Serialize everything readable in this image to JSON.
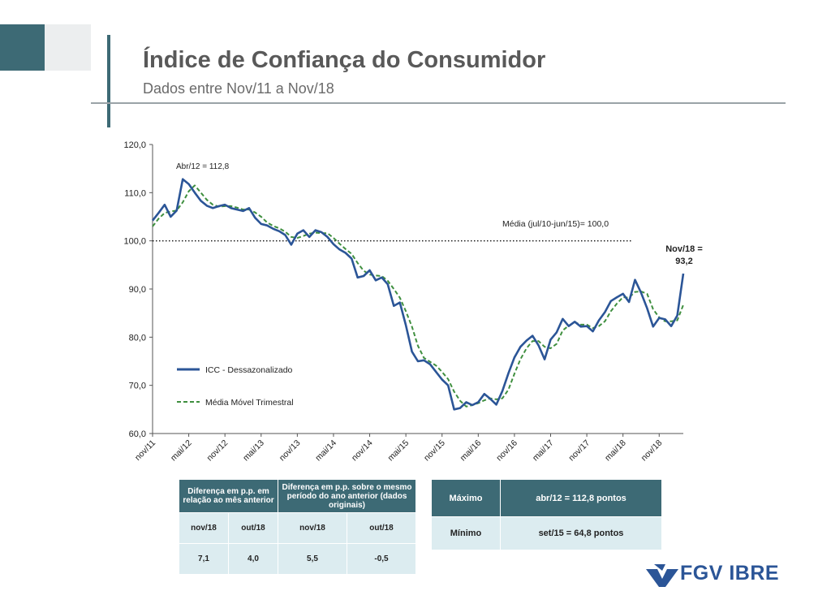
{
  "header": {
    "title": "Índice de Confiança do Consumidor",
    "subtitle": "Dados entre Nov/11 a Nov/18"
  },
  "chart_data": {
    "type": "line",
    "title": "",
    "xlabel": "",
    "ylabel": "",
    "ylim": [
      60,
      120
    ],
    "yticks": [
      "120,0",
      "110,0",
      "100,0",
      "90,0",
      "80,0",
      "70,0",
      "60,0"
    ],
    "ytick_values": [
      120,
      110,
      100,
      90,
      80,
      70,
      60
    ],
    "xticks": [
      "nov/11",
      "mai/12",
      "nov/12",
      "mai/13",
      "nov/13",
      "mai/14",
      "nov/14",
      "mai/15",
      "nov/15",
      "mai/16",
      "nov/16",
      "mai/17",
      "nov/17",
      "mai/18",
      "nov/18"
    ],
    "reference_line": {
      "value": 100,
      "label": "Média (jul/10-jun/15)= 100,0"
    },
    "annotations": [
      {
        "text": "Abr/12 = 112,8"
      },
      {
        "text": "Nov/18 ="
      },
      {
        "text": "93,2"
      }
    ],
    "series": [
      {
        "name": "ICC - Dessazonalizado",
        "color": "#2b5597",
        "style": "solid",
        "values": [
          104.2,
          105.8,
          107.5,
          105.0,
          106.3,
          112.8,
          111.8,
          110.0,
          108.3,
          107.3,
          106.8,
          107.2,
          107.5,
          106.8,
          106.5,
          106.2,
          106.8,
          104.8,
          103.5,
          103.2,
          102.5,
          102.0,
          101.2,
          99.2,
          101.5,
          102.2,
          100.8,
          102.2,
          101.8,
          100.8,
          99.3,
          98.2,
          97.5,
          96.3,
          92.4,
          92.7,
          93.9,
          91.8,
          92.4,
          91.0,
          86.5,
          87.2,
          82.5,
          77.0,
          75.0,
          75.2,
          74.4,
          72.8,
          71.2,
          70.0,
          65.0,
          65.3,
          66.5,
          65.9,
          66.5,
          68.2,
          67.2,
          66.0,
          68.8,
          72.5,
          75.8,
          78.0,
          79.3,
          80.3,
          78.3,
          75.4,
          79.5,
          81.0,
          83.8,
          82.3,
          83.2,
          82.2,
          82.3,
          81.2,
          83.5,
          85.2,
          87.5,
          88.3,
          89.0,
          87.3,
          91.9,
          89.2,
          86.0,
          82.2,
          84.0,
          83.7,
          82.3,
          84.5,
          93.2
        ]
      },
      {
        "name": "Média Móvel Trimestral",
        "color": "#3f8f3f",
        "style": "dashed",
        "values": [
          103.0,
          104.6,
          105.8,
          106.1,
          106.3,
          108.0,
          110.3,
          111.5,
          110.0,
          108.5,
          107.5,
          107.1,
          107.2,
          107.2,
          106.9,
          106.5,
          106.5,
          105.9,
          105.0,
          103.8,
          103.1,
          102.6,
          101.9,
          100.8,
          100.6,
          101.0,
          101.5,
          101.7,
          101.6,
          101.6,
          100.6,
          99.4,
          98.3,
          97.3,
          95.4,
          93.8,
          93.0,
          92.8,
          92.7,
          91.7,
          90.0,
          88.2,
          85.4,
          82.2,
          78.2,
          75.7,
          74.9,
          74.1,
          72.8,
          71.3,
          68.7,
          66.8,
          65.6,
          65.9,
          66.3,
          66.9,
          67.3,
          67.1,
          67.3,
          69.1,
          72.4,
          75.4,
          77.7,
          79.2,
          79.2,
          78.0,
          77.7,
          78.6,
          81.4,
          82.4,
          83.1,
          82.6,
          82.6,
          81.9,
          82.3,
          83.3,
          85.4,
          87.0,
          88.3,
          88.2,
          89.4,
          89.5,
          89.0,
          85.8,
          84.1,
          83.3,
          83.3,
          83.5,
          86.7
        ]
      }
    ],
    "legend": [
      "ICC - Dessazonalizado",
      "Média Móvel Trimestral"
    ],
    "legend_position": "bottom-left"
  },
  "table_diff": {
    "header1": "Diferença em p.p. em relação ao mês anterior",
    "header2": "Diferença em p.p. sobre o mesmo período do ano anterior (dados originais)",
    "sub": [
      "nov/18",
      "out/18",
      "nov/18",
      "out/18"
    ],
    "values": [
      "7,1",
      "4,0",
      "5,5",
      "-0,5"
    ]
  },
  "table_extremes": {
    "max_label": "Máximo",
    "max_value": "abr/12 = 112,8 pontos",
    "min_label": "Mínimo",
    "min_value": "set/15 = 64,8 pontos"
  },
  "logo": {
    "text": "FGV IBRE",
    "color": "#2b5597"
  }
}
